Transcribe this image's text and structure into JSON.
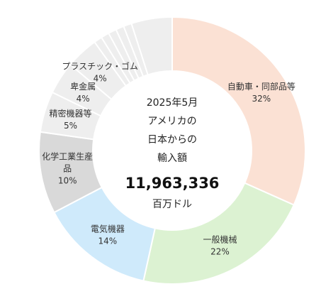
{
  "chart_data": {
    "type": "donut",
    "center": {
      "line1": "2025年5月",
      "line2": "アメリカの",
      "line3": "日本からの",
      "line4": "輸入額",
      "total": "11,963,336",
      "unit": "百万ドル"
    },
    "slices": [
      {
        "label": "自動車・同部品等",
        "value": 32,
        "display": "32%",
        "color": "#fbe1d4"
      },
      {
        "label": "一般機械",
        "value": 22,
        "display": "22%",
        "color": "#dcf2d2"
      },
      {
        "label": "電気機器",
        "value": 14,
        "display": "14%",
        "color": "#cfeafb"
      },
      {
        "label": "化学工業生産品",
        "label_lines": [
          "化学工業生産",
          "品"
        ],
        "value": 10,
        "display": "10%",
        "color": "#d9d9d9"
      },
      {
        "label": "精密機器等",
        "value": 5,
        "display": "5%",
        "color": "#eeeeee"
      },
      {
        "label": "卑金属",
        "value": 4,
        "display": "4%",
        "color": "#eeeeee"
      },
      {
        "label": "プラスチック・ゴム",
        "value": 4,
        "display": "4%",
        "color": "#eeeeee"
      },
      {
        "label": "",
        "value": 1,
        "display": "",
        "color": "#eeeeee"
      },
      {
        "label": "",
        "value": 1,
        "display": "",
        "color": "#eeeeee"
      },
      {
        "label": "",
        "value": 1,
        "display": "",
        "color": "#eeeeee"
      },
      {
        "label": "",
        "value": 1,
        "display": "",
        "color": "#eeeeee"
      },
      {
        "label": "",
        "value": 1,
        "display": "",
        "color": "#eeeeee"
      },
      {
        "label": "",
        "value": 5,
        "display": "",
        "color": "#eeeeee"
      }
    ]
  }
}
